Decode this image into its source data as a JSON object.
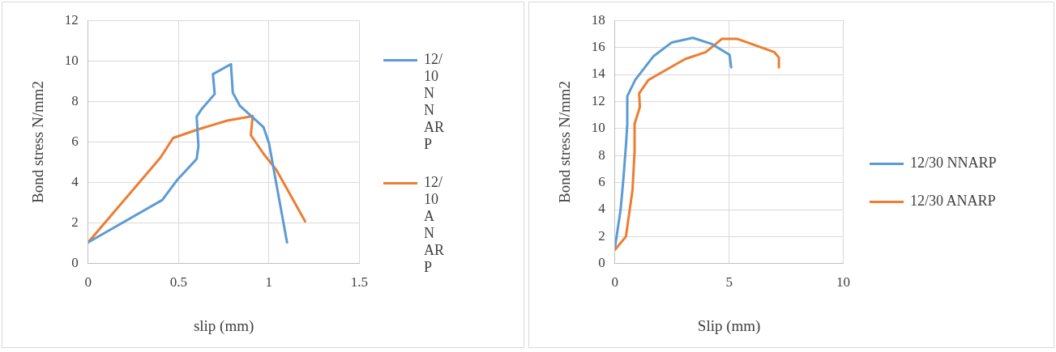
{
  "chart_data": [
    {
      "type": "line",
      "xlabel": "slip (mm)",
      "ylabel": "Bond stress N/mm2",
      "xlim": [
        0,
        1.5
      ],
      "xticks": [
        0,
        0.5,
        1,
        1.5
      ],
      "ylim": [
        0,
        12
      ],
      "yticks": [
        0,
        2,
        4,
        6,
        8,
        10,
        12
      ],
      "grid": true,
      "legend": "right",
      "marker": "none",
      "line_style": "solid",
      "series": [
        {
          "name": "12/10 NNARP",
          "color": "#5b9bd5",
          "x": [
            0,
            0.41,
            0.49,
            0.6,
            0.61,
            0.6,
            0.63,
            0.7,
            0.69,
            0.79,
            0.8,
            0.84,
            0.97,
            1.0,
            1.1
          ],
          "values": [
            1.05,
            3.14,
            4.1,
            5.16,
            5.8,
            7.25,
            7.65,
            8.37,
            9.35,
            9.84,
            8.43,
            7.78,
            6.73,
            5.95,
            1.05
          ]
        },
        {
          "name": "12/10 ANARP",
          "color": "#ed7d31",
          "x": [
            0,
            0.4,
            0.47,
            0.6,
            0.77,
            0.91,
            0.9,
            0.97,
            1.04,
            1.2
          ],
          "values": [
            1.05,
            5.23,
            6.2,
            6.6,
            7.06,
            7.28,
            6.34,
            5.42,
            4.64,
            2.09
          ]
        }
      ]
    },
    {
      "type": "line",
      "xlabel": "Slip (mm)",
      "ylabel": "Bond stress N/mm2",
      "xlim": [
        0,
        10
      ],
      "xticks": [
        0,
        5,
        10
      ],
      "ylim": [
        0,
        18
      ],
      "yticks": [
        0,
        2,
        4,
        6,
        8,
        10,
        12,
        14,
        16,
        18
      ],
      "grid": true,
      "legend": "right",
      "marker": "none",
      "line_style": "solid",
      "series": [
        {
          "name": "12/30 NNARP",
          "color": "#5b9bd5",
          "x": [
            0,
            0.25,
            0.37,
            0.48,
            0.54,
            0.54,
            0.89,
            1.69,
            2.49,
            3.41,
            4.22,
            5.02,
            5.09
          ],
          "values": [
            1.18,
            4.04,
            6.28,
            8.72,
            10.35,
            12.39,
            13.6,
            15.35,
            16.37,
            16.71,
            16.27,
            15.45,
            14.53
          ]
        },
        {
          "name": "12/30 ANARP",
          "color": "#ed7d31",
          "x": [
            0,
            0.48,
            0.77,
            0.86,
            0.86,
            1.09,
            1.06,
            1.47,
            3.07,
            3.98,
            4.68,
            5.37,
            6.98,
            7.18,
            7.18
          ],
          "values": [
            1.02,
            2.0,
            5.46,
            8.32,
            10.35,
            11.58,
            12.6,
            13.6,
            15.14,
            15.65,
            16.63,
            16.63,
            15.65,
            15.25,
            14.53
          ]
        }
      ]
    }
  ]
}
